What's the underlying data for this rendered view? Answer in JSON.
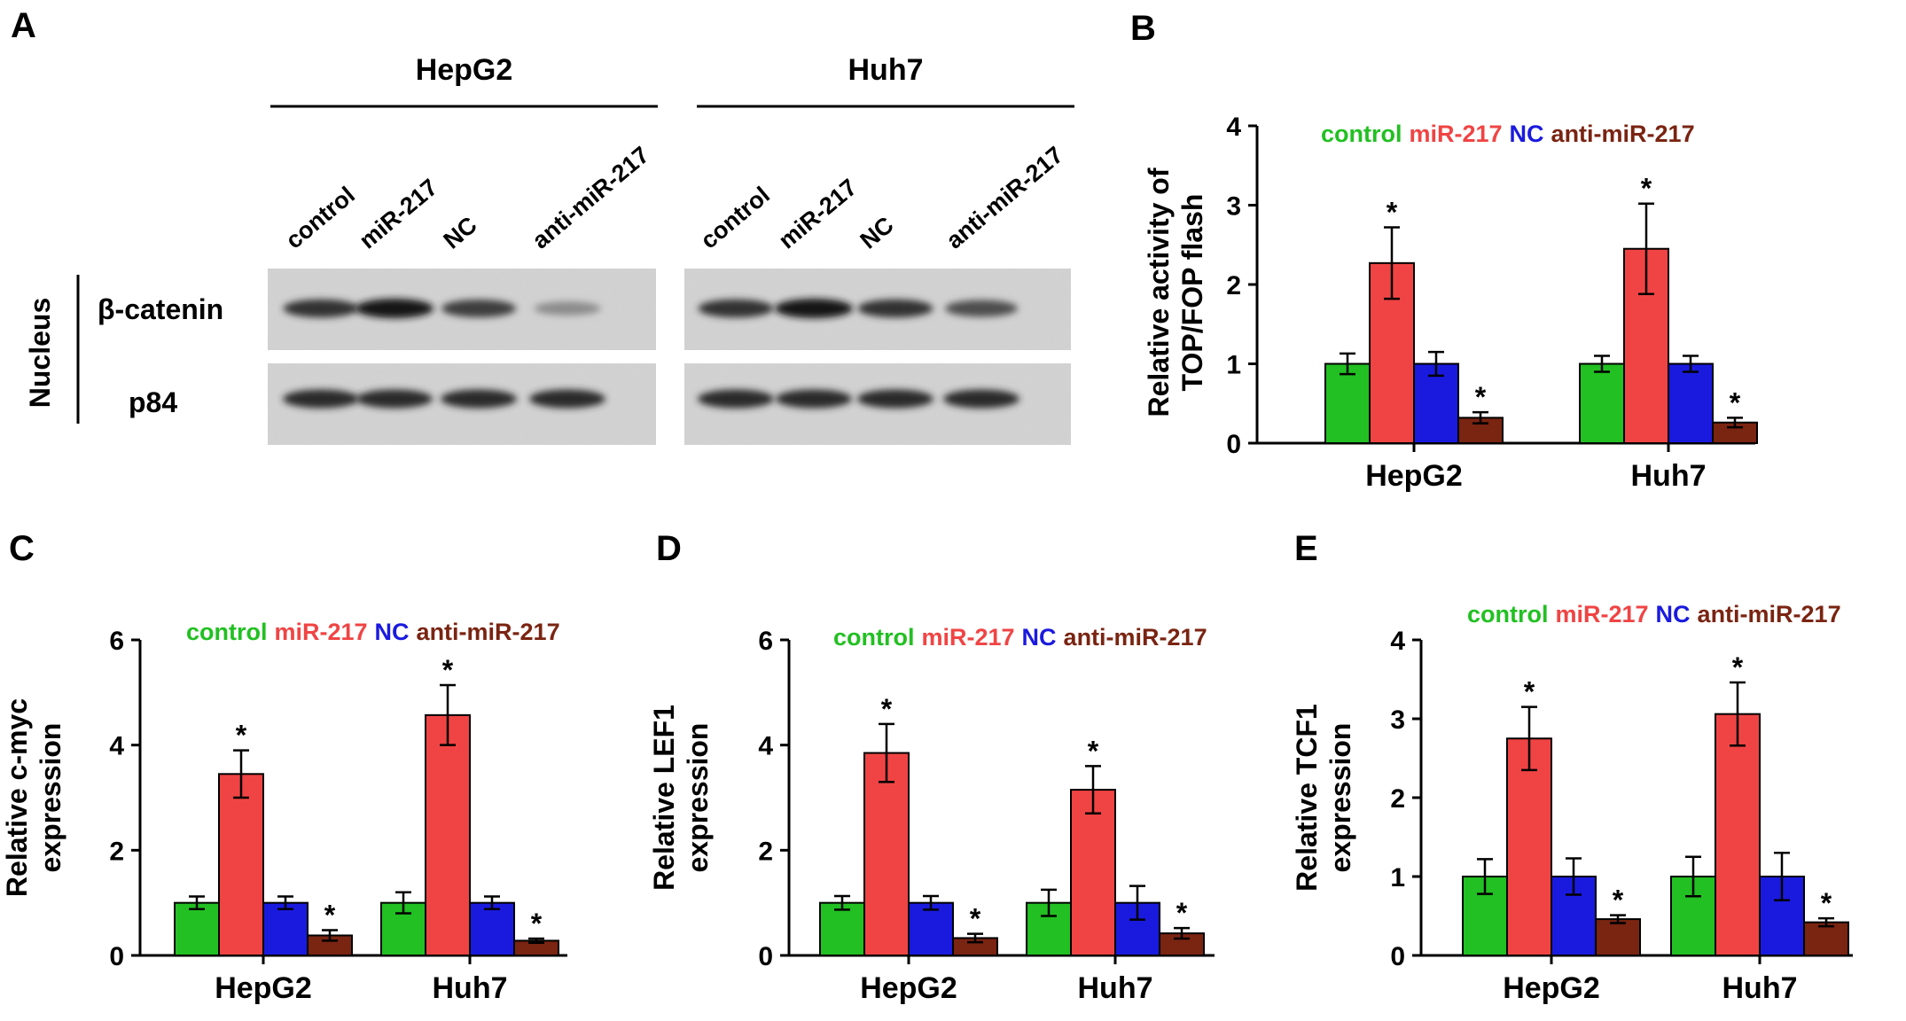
{
  "panels": {
    "A": {
      "letter": "A",
      "blots": [
        {
          "cell_line": "HepG2",
          "lanes": [
            "control",
            "miR-217",
            "NC",
            "anti-miR-217"
          ]
        },
        {
          "cell_line": "Huh7",
          "lanes": [
            "control",
            "miR-217",
            "NC",
            "anti-miR-217"
          ]
        }
      ],
      "fraction_label": "Nucleus",
      "rows": [
        "β-catenin",
        "p84"
      ],
      "band_intensity": {
        "HepG2": {
          "β-catenin": [
            0.85,
            1.0,
            0.8,
            0.35
          ],
          "p84": [
            0.9,
            0.9,
            0.9,
            0.9
          ]
        },
        "Huh7": {
          "β-catenin": [
            0.85,
            1.0,
            0.85,
            0.7
          ],
          "p84": [
            0.9,
            0.9,
            0.9,
            0.9
          ]
        }
      }
    }
  },
  "legend": {
    "entries": [
      "control",
      "miR-217",
      "NC",
      "anti-miR-217"
    ],
    "colors": [
      "#22c022",
      "#f04444",
      "#1a1adf",
      "#7a2412"
    ]
  },
  "chart_data": [
    {
      "panel": "B",
      "type": "bar",
      "ylabel": [
        "Relative activity of",
        "TOP/FOP flash"
      ],
      "categories": [
        "HepG2",
        "Huh7"
      ],
      "ylim": [
        0,
        4
      ],
      "yticks": [
        0,
        1,
        2,
        3,
        4
      ],
      "series": [
        {
          "name": "control",
          "values": [
            1.0,
            1.0
          ],
          "errors": [
            0.13,
            0.1
          ],
          "significant": [
            false,
            false
          ]
        },
        {
          "name": "miR-217",
          "values": [
            2.27,
            2.45
          ],
          "errors": [
            0.45,
            0.57
          ],
          "significant": [
            true,
            true
          ]
        },
        {
          "name": "NC",
          "values": [
            1.0,
            1.0
          ],
          "errors": [
            0.15,
            0.1
          ],
          "significant": [
            false,
            false
          ]
        },
        {
          "name": "anti-miR-217",
          "values": [
            0.32,
            0.26
          ],
          "errors": [
            0.07,
            0.06
          ],
          "significant": [
            true,
            true
          ]
        }
      ],
      "significance_marker": "*"
    },
    {
      "panel": "C",
      "type": "bar",
      "ylabel": [
        "Relative c-myc",
        "expression"
      ],
      "categories": [
        "HepG2",
        "Huh7"
      ],
      "ylim": [
        0,
        6
      ],
      "yticks": [
        0,
        2,
        4,
        6
      ],
      "series": [
        {
          "name": "control",
          "values": [
            1.0,
            1.0
          ],
          "errors": [
            0.12,
            0.2
          ],
          "significant": [
            false,
            false
          ]
        },
        {
          "name": "miR-217",
          "values": [
            3.45,
            4.57
          ],
          "errors": [
            0.45,
            0.57
          ],
          "significant": [
            true,
            true
          ]
        },
        {
          "name": "NC",
          "values": [
            1.0,
            1.0
          ],
          "errors": [
            0.12,
            0.12
          ],
          "significant": [
            false,
            false
          ]
        },
        {
          "name": "anti-miR-217",
          "values": [
            0.38,
            0.28
          ],
          "errors": [
            0.1,
            0.04
          ],
          "significant": [
            true,
            true
          ]
        }
      ],
      "significance_marker": "*"
    },
    {
      "panel": "D",
      "type": "bar",
      "ylabel": [
        "Relative LEF1",
        "expression"
      ],
      "categories": [
        "HepG2",
        "Huh7"
      ],
      "ylim": [
        0,
        6
      ],
      "yticks": [
        0,
        2,
        4,
        6
      ],
      "series": [
        {
          "name": "control",
          "values": [
            1.0,
            1.0
          ],
          "errors": [
            0.13,
            0.25
          ],
          "significant": [
            false,
            false
          ]
        },
        {
          "name": "miR-217",
          "values": [
            3.85,
            3.15
          ],
          "errors": [
            0.55,
            0.45
          ],
          "significant": [
            true,
            true
          ]
        },
        {
          "name": "NC",
          "values": [
            1.0,
            1.0
          ],
          "errors": [
            0.13,
            0.32
          ],
          "significant": [
            false,
            false
          ]
        },
        {
          "name": "anti-miR-217",
          "values": [
            0.33,
            0.42
          ],
          "errors": [
            0.08,
            0.1
          ],
          "significant": [
            true,
            true
          ]
        }
      ],
      "significance_marker": "*"
    },
    {
      "panel": "E",
      "type": "bar",
      "ylabel": [
        "Relative TCF1",
        "expression"
      ],
      "categories": [
        "HepG2",
        "Huh7"
      ],
      "ylim": [
        0,
        4
      ],
      "yticks": [
        0,
        1,
        2,
        3,
        4
      ],
      "series": [
        {
          "name": "control",
          "values": [
            1.0,
            1.0
          ],
          "errors": [
            0.22,
            0.25
          ],
          "significant": [
            false,
            false
          ]
        },
        {
          "name": "miR-217",
          "values": [
            2.75,
            3.06
          ],
          "errors": [
            0.4,
            0.4
          ],
          "significant": [
            true,
            true
          ]
        },
        {
          "name": "NC",
          "values": [
            1.0,
            1.0
          ],
          "errors": [
            0.23,
            0.3
          ],
          "significant": [
            false,
            false
          ]
        },
        {
          "name": "anti-miR-217",
          "values": [
            0.46,
            0.42
          ],
          "errors": [
            0.05,
            0.05
          ],
          "significant": [
            true,
            true
          ]
        }
      ],
      "significance_marker": "*"
    }
  ]
}
